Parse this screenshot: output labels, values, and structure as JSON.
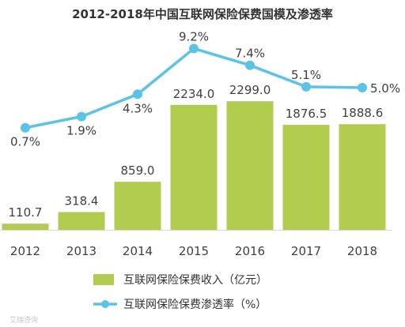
{
  "chart_data": {
    "type": "bar",
    "title": "2012-2018年中国互联网保险保费国模及渗透率",
    "categories": [
      "2012",
      "2013",
      "2014",
      "2015",
      "2016",
      "2017",
      "2018"
    ],
    "series": [
      {
        "name": "互联网保险保费收入（亿元）",
        "type": "bar",
        "values": [
          110.7,
          318.4,
          859.0,
          2234.0,
          2299.0,
          1876.5,
          1888.6
        ],
        "labels": [
          "110.7",
          "318.4",
          "859.0",
          "2234.0",
          "2299.0",
          "1876.5",
          "1888.6"
        ]
      },
      {
        "name": "互联网保险保费渗透率（%）",
        "type": "line",
        "values": [
          0.7,
          1.9,
          4.3,
          9.2,
          7.4,
          5.1,
          5.0
        ],
        "labels": [
          "0.7%",
          "1.9%",
          "4.3%",
          "9.2%",
          "7.4%",
          "5.1%",
          "5.0%"
        ]
      }
    ],
    "ylim": [
      0,
      2400
    ],
    "legend_position": "bottom",
    "grid": false
  },
  "colors": {
    "bar": "#b2cc4f",
    "line": "#5ac3e6",
    "axis": "#d9d9d9"
  },
  "watermark": "艾瑞咨询"
}
